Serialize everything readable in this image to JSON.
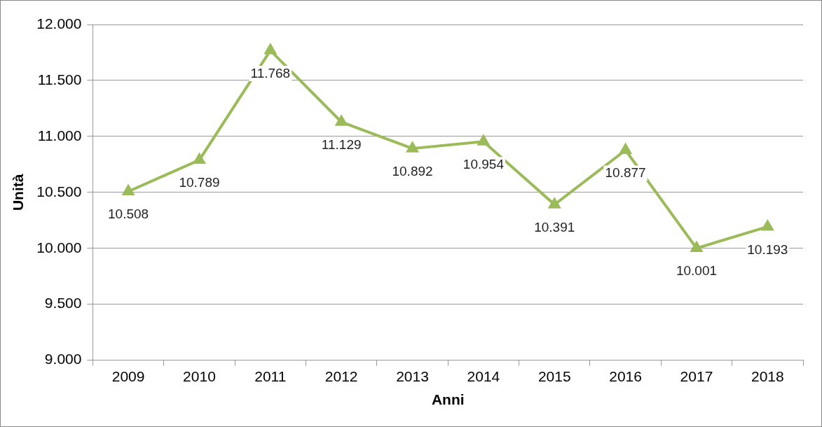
{
  "chart_data": {
    "type": "line",
    "xlabel": "Anni",
    "ylabel": "Unità",
    "categories": [
      "2009",
      "2010",
      "2011",
      "2012",
      "2013",
      "2014",
      "2015",
      "2016",
      "2017",
      "2018"
    ],
    "series": [
      {
        "color": "#9bbb59",
        "values": [
          10508,
          10789,
          11768,
          11129,
          10892,
          10954,
          10391,
          10877,
          10001,
          10193
        ],
        "value_labels": [
          "10.508",
          "10.789",
          "11.768",
          "11.129",
          "10.892",
          "10.954",
          "10.391",
          "10.877",
          "10.001",
          "10.193"
        ]
      }
    ],
    "ylim": [
      9000,
      12000
    ],
    "yticks": [
      {
        "value": 9000,
        "label": "9.000"
      },
      {
        "value": 9500,
        "label": "9.500"
      },
      {
        "value": 10000,
        "label": "10.000"
      },
      {
        "value": 10500,
        "label": "10.500"
      },
      {
        "value": 11000,
        "label": "11.000"
      },
      {
        "value": 11500,
        "label": "11.500"
      },
      {
        "value": 12000,
        "label": "12.000"
      }
    ],
    "grid": "y",
    "legend": false,
    "marker": "triangle",
    "line_style": "solid"
  }
}
